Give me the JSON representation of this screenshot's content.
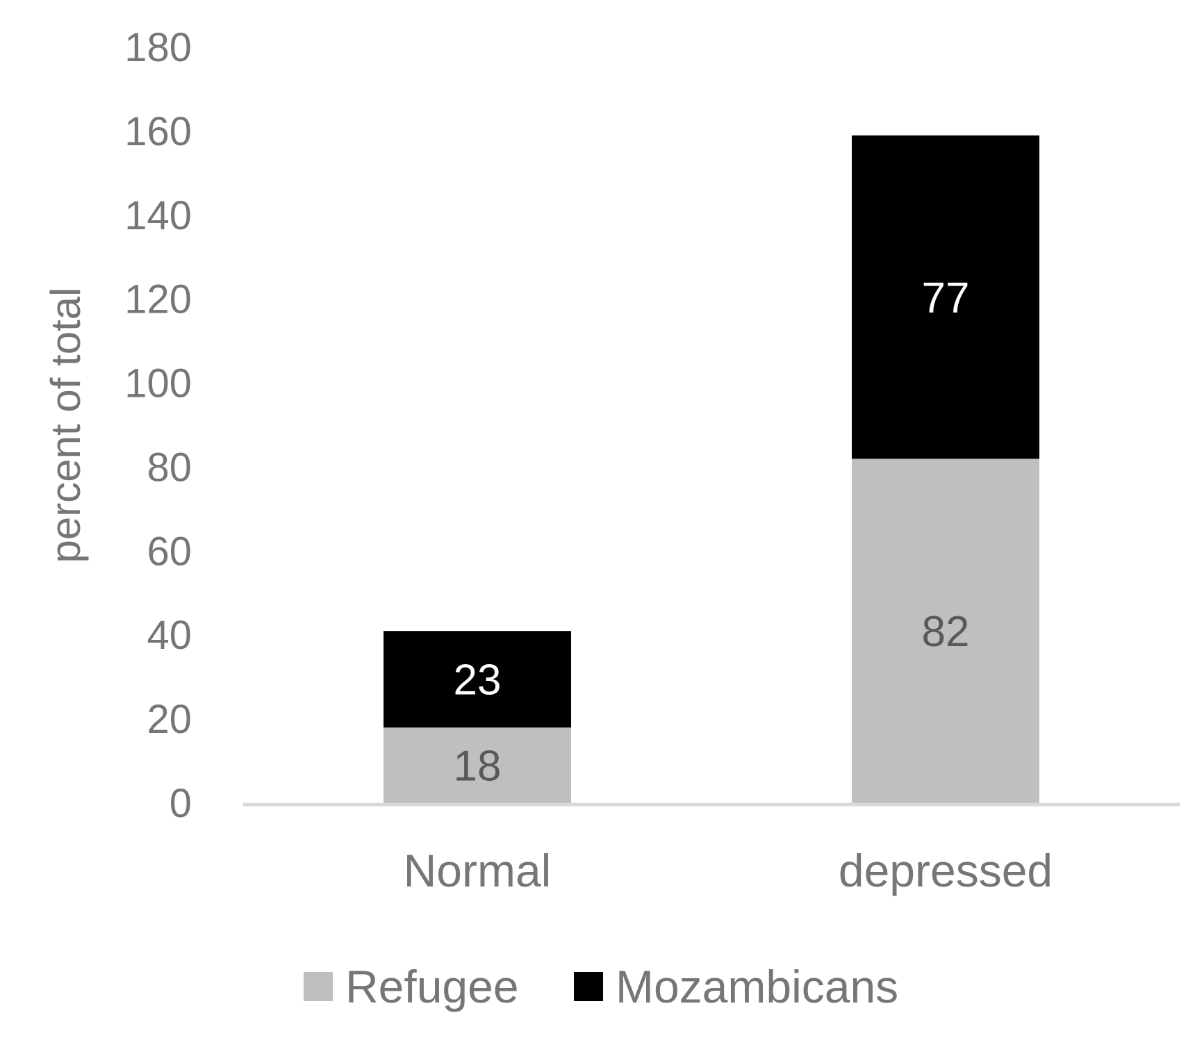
{
  "chart_data": {
    "type": "bar",
    "stacked": true,
    "categories": [
      "Normal",
      "depressed"
    ],
    "series": [
      {
        "name": "Refugee",
        "values": [
          18,
          82
        ],
        "color": "#bfbfbf",
        "label_color": "#595959"
      },
      {
        "name": "Mozambicans",
        "values": [
          23,
          77
        ],
        "color": "#000000",
        "label_color": "#ffffff"
      }
    ],
    "title": "",
    "xlabel": "",
    "ylabel": "percent of total",
    "ylim": [
      0,
      180
    ],
    "yticks": [
      "0",
      "20",
      "40",
      "60",
      "80",
      "100",
      "120",
      "140",
      "160",
      "180"
    ],
    "grid": false,
    "legend_position": "bottom",
    "axis_line_color": "#d9d9d9",
    "text_color": "#767676"
  }
}
